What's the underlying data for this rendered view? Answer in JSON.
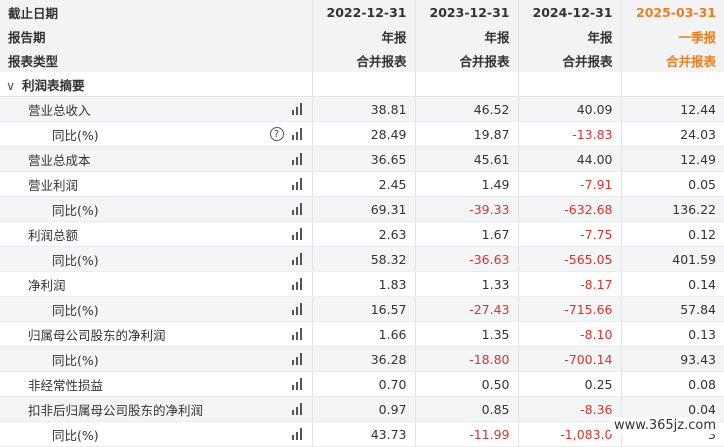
{
  "header": {
    "rows": [
      {
        "label": "截止日期",
        "cols": [
          "2022-12-31",
          "2023-12-31",
          "2024-12-31",
          "2025-03-31"
        ]
      },
      {
        "label": "报告期",
        "cols": [
          "年报",
          "年报",
          "年报",
          "一季报"
        ]
      },
      {
        "label": "报表类型",
        "cols": [
          "合并报表",
          "合并报表",
          "合并报表",
          "合并报表"
        ]
      }
    ],
    "accent_color": "#f07d1a"
  },
  "section": {
    "chevron": "∨",
    "title": "利润表摘要"
  },
  "rows": [
    {
      "label": "营业总收入",
      "level": 1,
      "help": false,
      "values": [
        "38.81",
        "46.52",
        "40.09",
        "12.44"
      ]
    },
    {
      "label": "同比(%)",
      "level": 2,
      "help": true,
      "help_icon": "?",
      "values": [
        "28.49",
        "19.87",
        "-13.83",
        "24.03"
      ]
    },
    {
      "label": "营业总成本",
      "level": 1,
      "help": false,
      "values": [
        "36.65",
        "45.61",
        "44.00",
        "12.49"
      ]
    },
    {
      "label": "营业利润",
      "level": 1,
      "help": false,
      "values": [
        "2.45",
        "1.49",
        "-7.91",
        "0.05"
      ]
    },
    {
      "label": "同比(%)",
      "level": 2,
      "help": false,
      "values": [
        "69.31",
        "-39.33",
        "-632.68",
        "136.22"
      ]
    },
    {
      "label": "利润总额",
      "level": 1,
      "help": false,
      "values": [
        "2.63",
        "1.67",
        "-7.75",
        "0.12"
      ]
    },
    {
      "label": "同比(%)",
      "level": 2,
      "help": false,
      "values": [
        "58.32",
        "-36.63",
        "-565.05",
        "401.59"
      ]
    },
    {
      "label": "净利润",
      "level": 1,
      "help": false,
      "values": [
        "1.83",
        "1.33",
        "-8.17",
        "0.14"
      ]
    },
    {
      "label": "同比(%)",
      "level": 2,
      "help": false,
      "values": [
        "16.57",
        "-27.43",
        "-715.66",
        "57.84"
      ]
    },
    {
      "label": "归属母公司股东的净利润",
      "level": 1,
      "help": false,
      "values": [
        "1.66",
        "1.35",
        "-8.10",
        "0.13"
      ]
    },
    {
      "label": "同比(%)",
      "level": 2,
      "help": false,
      "values": [
        "36.28",
        "-18.80",
        "-700.14",
        "93.43"
      ]
    },
    {
      "label": "非经常性损益",
      "level": 1,
      "help": false,
      "values": [
        "0.70",
        "0.50",
        "0.25",
        "0.08"
      ]
    },
    {
      "label": "扣非后归属母公司股东的净利润",
      "level": 1,
      "help": false,
      "values": [
        "0.97",
        "0.85",
        "-8.36",
        "0.04"
      ]
    },
    {
      "label": "同比(%)",
      "level": 2,
      "help": false,
      "values": [
        "43.73",
        "-11.99",
        "-1,083.0",
        "3"
      ]
    }
  ],
  "negative_color": "#e0312a",
  "watermark": "www.365jz.com"
}
